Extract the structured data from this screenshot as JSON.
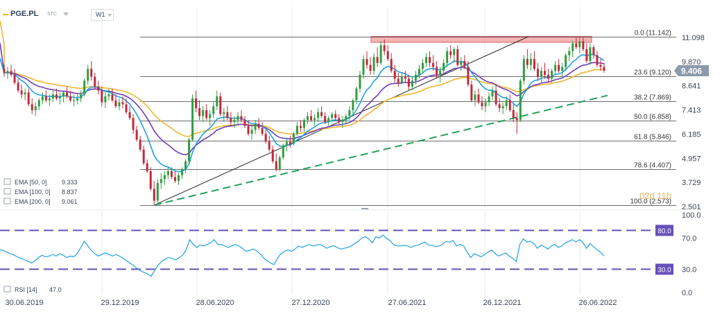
{
  "header": {
    "symbol": "PGE.PL",
    "exchange": "STC",
    "timeframe": "W1"
  },
  "countdown": "02d 11h",
  "colors": {
    "bull": "#2e9e3e",
    "bear": "#c2283a",
    "ema50": "#1ea0e8",
    "ema100": "#6f3db3",
    "ema200": "#f1b52e",
    "rsi": "#1ea0e8",
    "rsi_levels": "#6650b8",
    "trend_green": "#20a05a",
    "resistance_fill": "#f29a9a",
    "price_badge": "#8c9aab",
    "level_badge": "#6650b8"
  },
  "chart_data": [
    {
      "type": "candlestick",
      "panel": "price",
      "title": "",
      "x_tick_labels": [
        "30.06.2019",
        "29.12.2019",
        "28.06.2020",
        "27.12.2020",
        "27.06.2021",
        "26.12.2021",
        "26.06.2022"
      ],
      "y_tick_labels": [
        "11.098",
        "9.870",
        "8.641",
        "7.413",
        "6.185",
        "4.957",
        "3.729",
        "2.501"
      ],
      "y_range": [
        2.501,
        11.098
      ],
      "current_price": "9.406",
      "fibonacci_levels": [
        {
          "label": "0.0 (11.142)",
          "value": 11.142
        },
        {
          "label": "23.6 (9.120)",
          "value": 9.12
        },
        {
          "label": "38.2 (7.869)",
          "value": 7.869
        },
        {
          "label": "50.0 (6.858)",
          "value": 6.858
        },
        {
          "label": "61.8 (5.846)",
          "value": 5.846
        },
        {
          "label": "78.6 (4.407)",
          "value": 4.407
        },
        {
          "label": "100.0 (2.573)",
          "value": 2.573
        }
      ],
      "resistance_zone": [
        10.85,
        11.15
      ],
      "indicators": [
        {
          "label": "EMA [50, 0]",
          "value": "9.333"
        },
        {
          "label": "EMA [100, 0]",
          "value": "8.837"
        },
        {
          "label": "EMA [200, 0]",
          "value": "9.061"
        }
      ],
      "candles_ohlc": [
        [
          9.5,
          9.7,
          9.1,
          9.3
        ],
        [
          9.3,
          9.6,
          9.0,
          9.4
        ],
        [
          9.4,
          9.7,
          9.1,
          9.2
        ],
        [
          9.2,
          9.5,
          8.7,
          8.8
        ],
        [
          8.8,
          9.0,
          8.3,
          8.4
        ],
        [
          8.4,
          8.7,
          8.0,
          8.2
        ],
        [
          8.2,
          8.5,
          7.9,
          8.3
        ],
        [
          8.3,
          8.5,
          7.6,
          7.7
        ],
        [
          7.7,
          8.0,
          7.2,
          7.4
        ],
        [
          7.4,
          7.8,
          7.1,
          7.6
        ],
        [
          7.6,
          8.0,
          7.4,
          7.9
        ],
        [
          7.9,
          8.3,
          7.7,
          8.1
        ],
        [
          8.1,
          8.4,
          7.8,
          7.9
        ],
        [
          7.9,
          8.2,
          7.6,
          8.0
        ],
        [
          8.0,
          8.4,
          7.8,
          8.2
        ],
        [
          8.2,
          8.5,
          7.9,
          8.0
        ],
        [
          8.0,
          8.3,
          7.7,
          8.1
        ],
        [
          8.1,
          8.4,
          7.8,
          8.3
        ],
        [
          8.3,
          8.6,
          8.0,
          8.1
        ],
        [
          8.1,
          8.4,
          7.8,
          7.9
        ],
        [
          7.9,
          8.2,
          7.6,
          7.9
        ],
        [
          7.9,
          8.2,
          7.7,
          8.0
        ],
        [
          8.0,
          8.4,
          7.8,
          8.2
        ],
        [
          8.2,
          9.0,
          8.1,
          8.9
        ],
        [
          8.9,
          9.7,
          8.7,
          9.5
        ],
        [
          9.5,
          9.9,
          8.9,
          9.1
        ],
        [
          9.1,
          9.3,
          8.5,
          8.6
        ],
        [
          8.6,
          8.9,
          8.2,
          8.4
        ],
        [
          8.4,
          8.6,
          7.6,
          7.8
        ],
        [
          7.8,
          8.3,
          7.5,
          8.1
        ],
        [
          8.1,
          8.5,
          7.9,
          8.2
        ],
        [
          8.2,
          8.5,
          7.8,
          7.9
        ],
        [
          7.9,
          8.2,
          7.5,
          7.6
        ],
        [
          7.6,
          8.0,
          7.4,
          7.8
        ],
        [
          7.8,
          8.1,
          7.5,
          7.7
        ],
        [
          7.7,
          8.0,
          7.2,
          7.3
        ],
        [
          7.3,
          7.6,
          6.9,
          7.0
        ],
        [
          7.0,
          7.2,
          6.2,
          6.4
        ],
        [
          6.4,
          6.6,
          5.8,
          5.9
        ],
        [
          5.9,
          6.1,
          5.3,
          5.4
        ],
        [
          5.4,
          5.6,
          4.6,
          4.7
        ],
        [
          4.7,
          4.9,
          4.2,
          4.3
        ],
        [
          4.3,
          4.5,
          3.3,
          3.4
        ],
        [
          3.4,
          3.8,
          2.6,
          2.8
        ],
        [
          2.8,
          3.9,
          2.7,
          3.7
        ],
        [
          3.7,
          4.2,
          3.4,
          3.9
        ],
        [
          3.9,
          4.3,
          3.6,
          4.1
        ],
        [
          4.1,
          4.5,
          3.9,
          4.3
        ],
        [
          4.3,
          4.5,
          3.9,
          4.0
        ],
        [
          4.0,
          4.3,
          3.7,
          3.8
        ],
        [
          3.8,
          4.2,
          3.6,
          4.1
        ],
        [
          4.1,
          4.5,
          3.9,
          4.4
        ],
        [
          4.4,
          4.9,
          4.2,
          4.8
        ],
        [
          4.8,
          6.0,
          4.7,
          5.9
        ],
        [
          5.9,
          8.2,
          5.8,
          8.0
        ],
        [
          8.0,
          8.4,
          7.3,
          7.5
        ],
        [
          7.5,
          7.9,
          6.9,
          7.1
        ],
        [
          7.1,
          7.6,
          6.8,
          7.4
        ],
        [
          7.4,
          7.7,
          6.9,
          7.0
        ],
        [
          7.0,
          7.4,
          6.6,
          7.2
        ],
        [
          7.2,
          7.8,
          7.0,
          7.6
        ],
        [
          7.6,
          8.4,
          7.4,
          8.1
        ],
        [
          8.1,
          8.3,
          7.1,
          7.2
        ],
        [
          7.2,
          7.5,
          6.8,
          7.3
        ],
        [
          7.3,
          7.6,
          6.9,
          7.0
        ],
        [
          7.0,
          7.3,
          6.6,
          6.8
        ],
        [
          6.8,
          7.1,
          6.5,
          6.9
        ],
        [
          6.9,
          7.3,
          6.7,
          7.1
        ],
        [
          7.1,
          7.4,
          6.8,
          6.9
        ],
        [
          6.9,
          7.1,
          6.5,
          6.6
        ],
        [
          6.6,
          6.9,
          6.1,
          6.2
        ],
        [
          6.2,
          6.6,
          5.9,
          6.4
        ],
        [
          6.4,
          6.9,
          6.2,
          6.7
        ],
        [
          6.7,
          7.0,
          6.4,
          6.5
        ],
        [
          6.5,
          6.8,
          6.1,
          6.2
        ],
        [
          6.2,
          6.4,
          5.7,
          5.8
        ],
        [
          5.8,
          6.1,
          5.3,
          5.4
        ],
        [
          5.4,
          5.6,
          4.7,
          4.8
        ],
        [
          4.8,
          5.2,
          4.3,
          4.4
        ],
        [
          4.4,
          5.1,
          4.3,
          5.0
        ],
        [
          5.0,
          5.7,
          4.9,
          5.6
        ],
        [
          5.6,
          6.0,
          5.3,
          5.8
        ],
        [
          5.8,
          6.1,
          5.5,
          5.7
        ],
        [
          5.7,
          6.3,
          5.6,
          6.2
        ],
        [
          6.2,
          6.8,
          6.1,
          6.6
        ],
        [
          6.6,
          6.9,
          6.3,
          6.5
        ],
        [
          6.5,
          7.0,
          6.3,
          6.9
        ],
        [
          6.9,
          7.3,
          6.7,
          7.1
        ],
        [
          7.1,
          7.4,
          6.8,
          6.9
        ],
        [
          6.9,
          7.2,
          6.6,
          7.0
        ],
        [
          7.0,
          7.5,
          6.8,
          7.3
        ],
        [
          7.3,
          7.6,
          7.0,
          7.1
        ],
        [
          7.1,
          7.3,
          6.7,
          6.8
        ],
        [
          6.8,
          7.1,
          6.6,
          7.0
        ],
        [
          7.0,
          7.3,
          6.8,
          7.2
        ],
        [
          7.2,
          7.4,
          6.9,
          7.0
        ],
        [
          7.0,
          7.2,
          6.7,
          6.8
        ],
        [
          6.8,
          7.1,
          6.5,
          6.9
        ],
        [
          6.9,
          7.2,
          6.7,
          7.1
        ],
        [
          7.1,
          7.6,
          6.9,
          7.4
        ],
        [
          7.4,
          8.0,
          7.2,
          7.9
        ],
        [
          7.9,
          8.6,
          7.7,
          8.5
        ],
        [
          8.5,
          9.4,
          8.3,
          9.2
        ],
        [
          9.2,
          10.2,
          9.0,
          10.0
        ],
        [
          10.0,
          10.4,
          9.5,
          9.7
        ],
        [
          9.7,
          10.1,
          9.2,
          9.4
        ],
        [
          9.4,
          10.3,
          9.2,
          10.1
        ],
        [
          10.1,
          10.6,
          9.6,
          9.8
        ],
        [
          9.8,
          10.9,
          9.7,
          10.7
        ],
        [
          10.7,
          11.0,
          10.2,
          10.4
        ],
        [
          10.4,
          10.7,
          9.9,
          10.0
        ],
        [
          10.0,
          10.3,
          9.3,
          9.4
        ],
        [
          9.4,
          9.7,
          8.8,
          9.0
        ],
        [
          9.0,
          9.3,
          8.6,
          8.8
        ],
        [
          8.8,
          9.3,
          8.7,
          9.1
        ],
        [
          9.1,
          9.4,
          8.8,
          9.0
        ],
        [
          9.0,
          9.2,
          8.4,
          8.6
        ],
        [
          8.6,
          9.1,
          8.4,
          8.9
        ],
        [
          8.9,
          9.4,
          8.7,
          9.2
        ],
        [
          9.2,
          9.7,
          9.0,
          9.5
        ],
        [
          9.5,
          10.0,
          9.3,
          9.8
        ],
        [
          9.8,
          10.3,
          9.6,
          10.1
        ],
        [
          10.1,
          10.4,
          9.6,
          9.8
        ],
        [
          9.8,
          10.2,
          9.4,
          9.6
        ],
        [
          9.6,
          9.9,
          9.0,
          9.2
        ],
        [
          9.2,
          9.6,
          8.8,
          9.4
        ],
        [
          9.4,
          10.0,
          9.2,
          9.8
        ],
        [
          9.8,
          10.6,
          9.6,
          10.4
        ],
        [
          10.4,
          10.7,
          10.0,
          10.2
        ],
        [
          10.2,
          10.6,
          9.8,
          10.5
        ],
        [
          10.5,
          10.7,
          9.6,
          9.7
        ],
        [
          9.7,
          10.1,
          9.4,
          9.9
        ],
        [
          9.9,
          10.2,
          9.5,
          9.6
        ],
        [
          9.6,
          9.9,
          8.6,
          8.7
        ],
        [
          8.7,
          8.9,
          7.8,
          7.9
        ],
        [
          7.9,
          8.4,
          7.6,
          8.2
        ],
        [
          8.2,
          8.5,
          7.7,
          7.8
        ],
        [
          7.8,
          8.1,
          7.4,
          7.6
        ],
        [
          7.6,
          8.0,
          7.3,
          7.8
        ],
        [
          7.8,
          8.3,
          7.6,
          8.1
        ],
        [
          8.1,
          8.6,
          7.9,
          8.4
        ],
        [
          8.4,
          8.7,
          7.6,
          7.7
        ],
        [
          7.7,
          8.0,
          7.3,
          7.5
        ],
        [
          7.5,
          7.8,
          7.2,
          7.6
        ],
        [
          7.6,
          8.1,
          7.4,
          7.9
        ],
        [
          7.9,
          8.2,
          7.3,
          7.4
        ],
        [
          7.4,
          7.7,
          6.8,
          7.0
        ],
        [
          7.0,
          7.3,
          6.2,
          6.9
        ],
        [
          6.9,
          9.0,
          6.8,
          8.9
        ],
        [
          8.9,
          10.2,
          8.7,
          10.0
        ],
        [
          10.0,
          10.5,
          9.5,
          9.7
        ],
        [
          9.7,
          10.3,
          9.4,
          10.0
        ],
        [
          10.0,
          10.4,
          9.4,
          9.5
        ],
        [
          9.5,
          9.8,
          8.9,
          9.1
        ],
        [
          9.1,
          9.6,
          8.8,
          9.4
        ],
        [
          9.4,
          9.8,
          9.0,
          9.2
        ],
        [
          9.2,
          9.5,
          8.8,
          9.0
        ],
        [
          9.0,
          9.5,
          8.8,
          9.4
        ],
        [
          9.4,
          9.9,
          9.2,
          9.7
        ],
        [
          9.7,
          10.0,
          9.3,
          9.4
        ],
        [
          9.4,
          9.8,
          9.1,
          9.6
        ],
        [
          9.6,
          10.3,
          9.4,
          10.2
        ],
        [
          10.2,
          10.6,
          9.9,
          10.4
        ],
        [
          10.4,
          10.9,
          10.1,
          10.8
        ],
        [
          10.8,
          11.1,
          10.5,
          10.6
        ],
        [
          10.6,
          11.1,
          10.3,
          10.9
        ],
        [
          10.9,
          11.1,
          10.4,
          10.5
        ],
        [
          10.5,
          10.8,
          9.8,
          9.9
        ],
        [
          9.9,
          10.8,
          9.7,
          10.6
        ],
        [
          10.6,
          10.7,
          10.0,
          10.2
        ],
        [
          10.2,
          10.4,
          9.6,
          9.7
        ],
        [
          9.7,
          10.0,
          9.4,
          9.6
        ],
        [
          9.6,
          9.8,
          9.3,
          9.41
        ]
      ]
    },
    {
      "type": "line",
      "panel": "rsi",
      "title": "",
      "y_tick_labels": [
        "100.0",
        "70.0",
        "30.0",
        "0.0"
      ],
      "y_range": [
        0,
        100
      ],
      "indicator": {
        "label": "RSI [14]",
        "value": "47.0"
      },
      "levels": [
        "80.0",
        "30.0"
      ],
      "values": [
        55,
        54,
        52,
        50,
        48,
        46,
        44,
        42,
        40,
        38,
        41,
        45,
        48,
        46,
        47,
        49,
        47,
        50,
        48,
        45,
        47,
        46,
        50,
        58,
        66,
        60,
        54,
        50,
        47,
        49,
        51,
        49,
        47,
        49,
        47,
        44,
        41,
        38,
        35,
        31,
        28,
        26,
        24,
        21,
        28,
        35,
        40,
        43,
        45,
        44,
        42,
        45,
        48,
        55,
        68,
        62,
        58,
        61,
        60,
        62,
        64,
        68,
        62,
        62,
        60,
        58,
        60,
        62,
        60,
        57,
        53,
        54,
        56,
        54,
        50,
        45,
        41,
        38,
        36,
        44,
        50,
        53,
        55,
        53,
        56,
        60,
        58,
        60,
        62,
        60,
        61,
        62,
        60,
        57,
        59,
        60,
        58,
        56,
        57,
        58,
        60,
        63,
        66,
        70,
        72,
        69,
        64,
        72,
        70,
        74,
        70,
        67,
        62,
        60,
        60,
        61,
        60,
        58,
        60,
        61,
        63,
        65,
        61,
        61,
        59,
        60,
        62,
        66,
        65,
        67,
        60,
        62,
        60,
        52,
        45,
        50,
        48,
        46,
        49,
        52,
        55,
        50,
        47,
        49,
        51,
        47,
        44,
        40,
        62,
        69,
        65,
        66,
        63,
        57,
        61,
        59,
        56,
        60,
        62,
        58,
        60,
        64,
        66,
        68,
        65,
        68,
        64,
        57,
        63,
        59,
        55,
        52,
        47
      ]
    }
  ]
}
